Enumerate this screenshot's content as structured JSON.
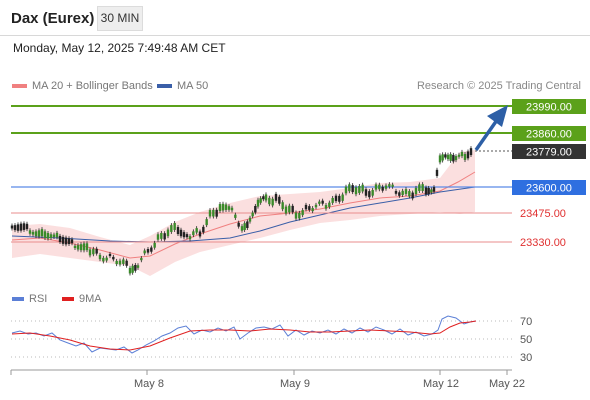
{
  "header": {
    "title": "Dax (Eurex)",
    "interval": "30 MIN"
  },
  "timestamp": "Monday, May 12, 2025 7:49:48 AM CET",
  "legend": {
    "ma20": {
      "label": "MA 20 + Bollinger Bands",
      "color": "#f08080"
    },
    "ma50": {
      "label": "MA 50",
      "color": "#3a5fa8"
    }
  },
  "copyright": "Research © 2025 Trading Central",
  "levels": [
    {
      "id": "target-2",
      "label": "23990.00",
      "style": "green-box",
      "color": "#5ba11a"
    },
    {
      "id": "target-1",
      "label": "23860.00",
      "style": "green-box",
      "color": "#5ba11a"
    },
    {
      "id": "last-price",
      "label": "23779.00",
      "style": "dark-box",
      "color": "#333333"
    },
    {
      "id": "pivot",
      "label": "23600.00",
      "style": "blue-box",
      "color": "#2f6fe0"
    },
    {
      "id": "support-1",
      "label": "23475.00",
      "style": "red-text",
      "color": "#e03030"
    },
    {
      "id": "support-2",
      "label": "23330.00",
      "style": "red-text",
      "color": "#e03030"
    }
  ],
  "rsi_legend": {
    "rsi": {
      "label": "RSI",
      "color": "#5b7fd6"
    },
    "ma9": {
      "label": "9MA",
      "color": "#e02020"
    }
  },
  "rsi_scale": [
    "70",
    "50",
    "30"
  ],
  "x_axis": [
    "May 8",
    "May 9",
    "May 12",
    "May 22"
  ]
}
